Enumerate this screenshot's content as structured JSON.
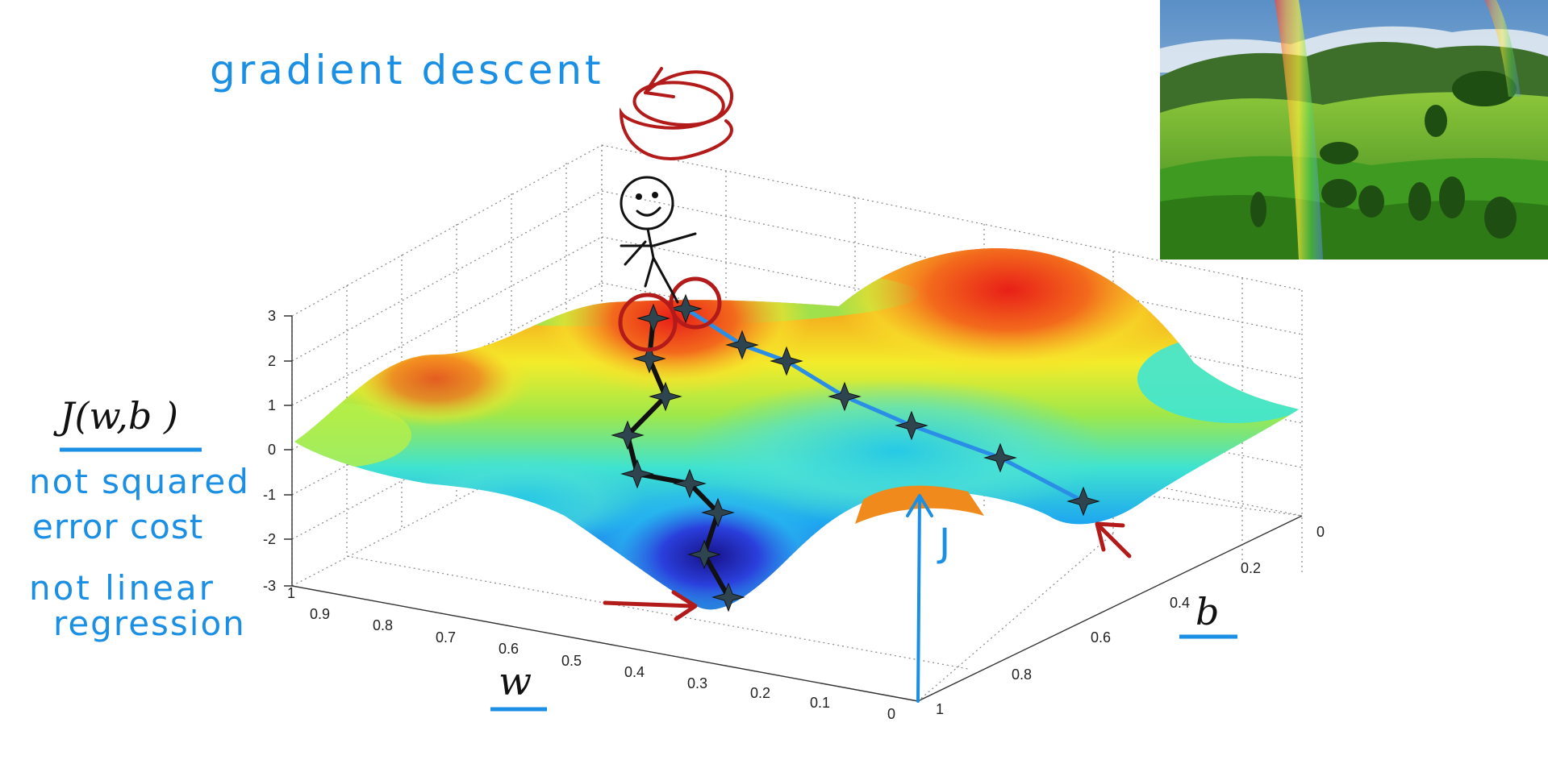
{
  "annotations": {
    "title": "gradient descent",
    "cost_label": "J(w,b )",
    "note1_line1": "not squared",
    "note1_line2": "error cost",
    "note2_line1": "not linear",
    "note2_line2": "regression",
    "j_label": "J"
  },
  "axes": {
    "w_label": "w",
    "b_label": "b",
    "z_ticks": [
      "3",
      "2",
      "1",
      "0",
      "-1",
      "-2",
      "-3"
    ],
    "w_ticks": [
      "1",
      "0.9",
      "0.8",
      "0.7",
      "0.6",
      "0.5",
      "0.4",
      "0.3",
      "0.2",
      "0.1",
      "0"
    ],
    "b_ticks": [
      "0",
      "0.2",
      "0.4",
      "0.6",
      "0.8",
      "1"
    ]
  },
  "colors": {
    "annotation_blue": "#1a8fe3",
    "annotation_red": "#b31b1b",
    "path_black": "#111111",
    "path_blue": "#2a8ee6"
  }
}
